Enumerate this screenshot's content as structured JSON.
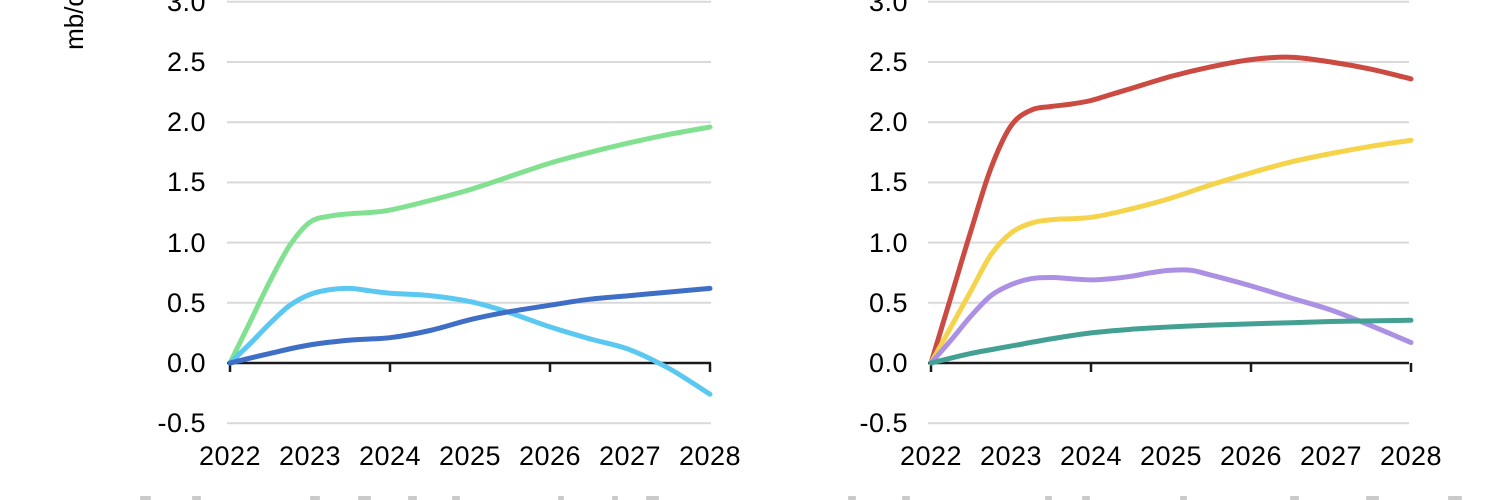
{
  "unit_label": "mb/d",
  "chart_data": [
    {
      "id": "left-panel",
      "type": "line",
      "title": "",
      "xlabel": "",
      "ylabel": "mb/d",
      "grid": true,
      "ylim": [
        -0.5,
        3.0
      ],
      "y_ticks": [
        3.0,
        2.5,
        2.0,
        1.5,
        1.0,
        0.5,
        0.0,
        -0.5
      ],
      "y_tick_labels": [
        "3.0",
        "2.5",
        "2.0",
        "1.5",
        "1.0",
        "0.5",
        "0.0",
        "-0.5"
      ],
      "x_ticks": [
        2022,
        2023,
        2024,
        2025,
        2026,
        2027,
        2028
      ],
      "x_tick_labels": [
        "2022",
        "2023",
        "2024",
        "2025",
        "2026",
        "2027",
        "2028"
      ],
      "axis_tick_years": [
        2022,
        2024,
        2026,
        2028
      ],
      "legend_position": "bottom (cut off at image edge, labels not legible)",
      "series": [
        {
          "name": "green-series",
          "color": "#82E191",
          "points": [
            [
              2022,
              0
            ],
            [
              2022.25,
              0.34
            ],
            [
              2022.5,
              0.68
            ],
            [
              2022.75,
              0.98
            ],
            [
              2023,
              1.17
            ],
            [
              2023.25,
              1.22
            ],
            [
              2023.5,
              1.24
            ],
            [
              2023.75,
              1.25
            ],
            [
              2024,
              1.27
            ],
            [
              2024.5,
              1.35
            ],
            [
              2025,
              1.44
            ],
            [
              2025.5,
              1.55
            ],
            [
              2026,
              1.66
            ],
            [
              2026.5,
              1.75
            ],
            [
              2027,
              1.83
            ],
            [
              2027.5,
              1.9
            ],
            [
              2028,
              1.96
            ]
          ]
        },
        {
          "name": "sky-blue-series",
          "color": "#5BC8F2",
          "points": [
            [
              2022,
              0
            ],
            [
              2022.25,
              0.16
            ],
            [
              2022.5,
              0.33
            ],
            [
              2022.75,
              0.48
            ],
            [
              2023,
              0.57
            ],
            [
              2023.25,
              0.61
            ],
            [
              2023.5,
              0.62
            ],
            [
              2023.75,
              0.6
            ],
            [
              2024,
              0.58
            ],
            [
              2024.5,
              0.56
            ],
            [
              2025,
              0.51
            ],
            [
              2025.44,
              0.43
            ],
            [
              2026,
              0.3
            ],
            [
              2026.5,
              0.2
            ],
            [
              2027,
              0.11
            ],
            [
              2027.5,
              -0.05
            ],
            [
              2028,
              -0.26
            ]
          ]
        },
        {
          "name": "royal-blue-series",
          "color": "#3F6EC6",
          "points": [
            [
              2022,
              0
            ],
            [
              2022.5,
              0.08
            ],
            [
              2023,
              0.15
            ],
            [
              2023.5,
              0.19
            ],
            [
              2024,
              0.21
            ],
            [
              2024.5,
              0.27
            ],
            [
              2025,
              0.36
            ],
            [
              2025.44,
              0.42
            ],
            [
              2026,
              0.48
            ],
            [
              2026.5,
              0.53
            ],
            [
              2027,
              0.56
            ],
            [
              2027.5,
              0.59
            ],
            [
              2028,
              0.62
            ]
          ]
        }
      ]
    },
    {
      "id": "right-panel",
      "type": "line",
      "title": "",
      "xlabel": "",
      "ylabel": "",
      "grid": true,
      "ylim": [
        -0.5,
        3.0
      ],
      "y_ticks": [
        3.0,
        2.5,
        2.0,
        1.5,
        1.0,
        0.5,
        0.0,
        -0.5
      ],
      "y_tick_labels": [
        "3.0",
        "2.5",
        "2.0",
        "1.5",
        "1.0",
        "0.5",
        "0.0",
        "-0.5"
      ],
      "x_ticks": [
        2022,
        2023,
        2024,
        2025,
        2026,
        2027,
        2028
      ],
      "x_tick_labels": [
        "2022",
        "2023",
        "2024",
        "2025",
        "2026",
        "2027",
        "2028"
      ],
      "axis_tick_years": [
        2022,
        2024,
        2026,
        2028
      ],
      "legend_position": "bottom (cut off at image edge, labels not legible)",
      "series": [
        {
          "name": "red-series",
          "color": "#CB4A42",
          "points": [
            [
              2022,
              0
            ],
            [
              2022.25,
              0.55
            ],
            [
              2022.5,
              1.1
            ],
            [
              2022.75,
              1.62
            ],
            [
              2023,
              1.97
            ],
            [
              2023.25,
              2.1
            ],
            [
              2023.5,
              2.13
            ],
            [
              2023.75,
              2.15
            ],
            [
              2024,
              2.18
            ],
            [
              2024.25,
              2.23
            ],
            [
              2024.5,
              2.28
            ],
            [
              2025,
              2.38
            ],
            [
              2025.5,
              2.46
            ],
            [
              2026,
              2.52
            ],
            [
              2026.5,
              2.54
            ],
            [
              2027,
              2.5
            ],
            [
              2027.5,
              2.44
            ],
            [
              2028,
              2.36
            ]
          ]
        },
        {
          "name": "yellow-series",
          "color": "#F5D44C",
          "points": [
            [
              2022,
              0
            ],
            [
              2022.25,
              0.3
            ],
            [
              2022.5,
              0.6
            ],
            [
              2022.75,
              0.9
            ],
            [
              2023,
              1.08
            ],
            [
              2023.25,
              1.16
            ],
            [
              2023.5,
              1.19
            ],
            [
              2024,
              1.21
            ],
            [
              2024.5,
              1.28
            ],
            [
              2025,
              1.37
            ],
            [
              2025.5,
              1.48
            ],
            [
              2026,
              1.58
            ],
            [
              2026.5,
              1.67
            ],
            [
              2027,
              1.74
            ],
            [
              2027.5,
              1.8
            ],
            [
              2028,
              1.85
            ]
          ]
        },
        {
          "name": "purple-series",
          "color": "#AB90E4",
          "points": [
            [
              2022,
              0
            ],
            [
              2022.25,
              0.19
            ],
            [
              2022.5,
              0.39
            ],
            [
              2022.75,
              0.56
            ],
            [
              2023,
              0.65
            ],
            [
              2023.25,
              0.7
            ],
            [
              2023.5,
              0.71
            ],
            [
              2023.75,
              0.7
            ],
            [
              2024,
              0.69
            ],
            [
              2024.25,
              0.7
            ],
            [
              2024.5,
              0.72
            ],
            [
              2024.75,
              0.75
            ],
            [
              2025,
              0.77
            ],
            [
              2025.25,
              0.77
            ],
            [
              2025.5,
              0.73
            ],
            [
              2026,
              0.64
            ],
            [
              2026.5,
              0.54
            ],
            [
              2027,
              0.44
            ],
            [
              2027.5,
              0.31
            ],
            [
              2028,
              0.17
            ]
          ]
        },
        {
          "name": "teal-series",
          "color": "#45A094",
          "points": [
            [
              2022,
              0
            ],
            [
              2022.5,
              0.08
            ],
            [
              2023,
              0.14
            ],
            [
              2023.5,
              0.2
            ],
            [
              2024,
              0.25
            ],
            [
              2024.5,
              0.28
            ],
            [
              2025,
              0.3
            ],
            [
              2025.5,
              0.315
            ],
            [
              2026,
              0.325
            ],
            [
              2026.5,
              0.335
            ],
            [
              2027,
              0.345
            ],
            [
              2027.5,
              0.35
            ],
            [
              2028,
              0.355
            ]
          ]
        }
      ]
    }
  ],
  "colors": {
    "grid": "#D9D9D9",
    "axis": "#1A1A1A",
    "text": "#000000",
    "background": "#FFFFFF"
  }
}
